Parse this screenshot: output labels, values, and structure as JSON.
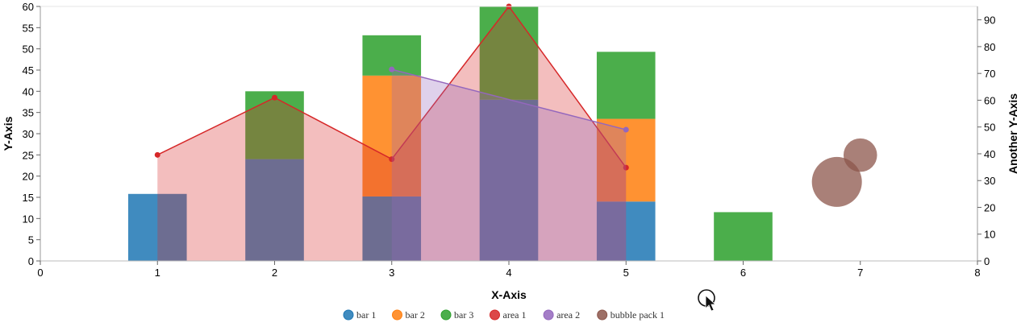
{
  "chart_data": {
    "type": "bar",
    "x_axis": {
      "label": "X-Axis",
      "range": [
        0,
        8
      ],
      "ticks": [
        0,
        1,
        2,
        3,
        4,
        5,
        6,
        7,
        8
      ]
    },
    "y_axis_left": {
      "label": "Y-Axis",
      "range": [
        0,
        60
      ],
      "ticks": [
        0,
        5,
        10,
        15,
        20,
        25,
        30,
        35,
        40,
        45,
        50,
        55,
        60
      ]
    },
    "y_axis_right": {
      "label": "Another Y-Axis",
      "range": [
        0,
        95
      ],
      "ticks": [
        0,
        10,
        20,
        30,
        40,
        50,
        60,
        70,
        80,
        90
      ]
    },
    "bar_series": [
      {
        "name": "bar 1",
        "color": "#1f77b4",
        "points": [
          {
            "x": 1,
            "y": 15.8
          },
          {
            "x": 2,
            "y": 24
          },
          {
            "x": 3,
            "y": 15.2
          },
          {
            "x": 4,
            "y": 38
          },
          {
            "x": 5,
            "y": 14
          }
        ]
      },
      {
        "name": "bar 2",
        "color": "#ff7f0e",
        "points": [
          {
            "x": 3,
            "y": 28.5
          },
          {
            "x": 5,
            "y": 19.5
          }
        ]
      },
      {
        "name": "bar 3",
        "color": "#2ca02c",
        "points": [
          {
            "x": 2,
            "y": 16
          },
          {
            "x": 3,
            "y": 9.5
          },
          {
            "x": 4,
            "y": 22
          },
          {
            "x": 5,
            "y": 15.8
          },
          {
            "x": 6,
            "y": 11.5
          }
        ]
      }
    ],
    "area_series": [
      {
        "name": "area 1",
        "color": "#d62728",
        "axis": "left",
        "points": [
          {
            "x": 1,
            "y": 25
          },
          {
            "x": 2,
            "y": 38.5
          },
          {
            "x": 3,
            "y": 24
          },
          {
            "x": 4,
            "y": 60
          },
          {
            "x": 5,
            "y": 22
          }
        ]
      },
      {
        "name": "area 2",
        "color": "#9467bd",
        "axis": "right",
        "points": [
          {
            "x": 3,
            "y": 71.5
          },
          {
            "x": 5,
            "y": 49
          }
        ]
      }
    ],
    "bubble_series": [
      {
        "name": "bubble pack 1",
        "color": "#8c564b",
        "axis": "right",
        "points": [
          {
            "x": 6.8,
            "y": 29.5,
            "size": 1
          },
          {
            "x": 7,
            "y": 39.5,
            "size": 0.45
          }
        ]
      }
    ],
    "legend": {
      "position": "bottom",
      "items": [
        {
          "label": "bar 1",
          "color": "#1f77b4"
        },
        {
          "label": "bar 2",
          "color": "#ff7f0e"
        },
        {
          "label": "bar 3",
          "color": "#2ca02c"
        },
        {
          "label": "area 1",
          "color": "#d62728"
        },
        {
          "label": "area 2",
          "color": "#9467bd"
        },
        {
          "label": "bubble pack 1",
          "color": "#8c564b"
        }
      ]
    },
    "grid": false
  }
}
